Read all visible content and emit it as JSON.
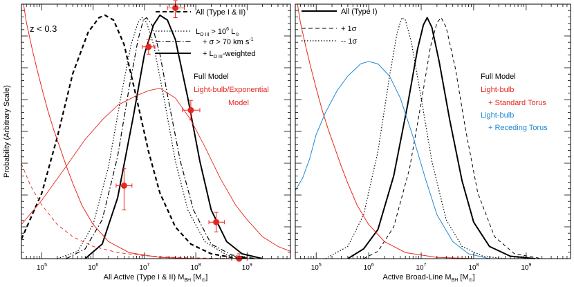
{
  "figure": {
    "ylabel": "Probability (Arbitrary Scale)"
  },
  "chart_data": [
    {
      "type": "line",
      "panel": "left",
      "xlabel": "All Active (Type I & II) M",
      "xlabel_sub": "BH",
      "xlabel_unit": "[M",
      "xlabel_unit_sub": "⊙",
      "xlabel_unit_end": "]",
      "x_scale": "log",
      "xlim": [
        40000,
        7000000000
      ],
      "ylim": [
        0,
        1.0
      ],
      "x_ticks": [
        {
          "v": 100000,
          "base": "10",
          "exp": "5"
        },
        {
          "v": 1000000,
          "base": "10",
          "exp": "6"
        },
        {
          "v": 10000000,
          "base": "10",
          "exp": "7"
        },
        {
          "v": 100000000,
          "base": "10",
          "exp": "8"
        },
        {
          "v": 1000000000,
          "base": "10",
          "exp": "9"
        }
      ],
      "annotation": "z < 0.3",
      "legend": [
        {
          "label": "All (Type I & II)",
          "style": "dashed"
        },
        {
          "label": "L_O III > 10^6 L_⊙",
          "style": "dotted"
        },
        {
          "label": "+ σ > 70 km s^-1",
          "style": "dashdot"
        },
        {
          "label": "+ L_O III-weighted",
          "style": "solid"
        }
      ],
      "text_labels": [
        "Full Model",
        "Light-bulb/Exponential",
        "Model"
      ],
      "series": [
        {
          "style": "dashed",
          "color": "#000000",
          "width": 2.2,
          "points": [
            [
              40000,
              0.08
            ],
            [
              100000,
              0.27
            ],
            [
              200000,
              0.5
            ],
            [
              400000,
              0.76
            ],
            [
              800000,
              0.93
            ],
            [
              1300000,
              0.99
            ],
            [
              1700000,
              1.0
            ],
            [
              2500000,
              0.98
            ],
            [
              4000000,
              0.88
            ],
            [
              7000000,
              0.66
            ],
            [
              12000000,
              0.44
            ],
            [
              20000000,
              0.27
            ],
            [
              40000000,
              0.13
            ],
            [
              80000000,
              0.06
            ],
            [
              200000000,
              0.02
            ],
            [
              500000000,
              0.005
            ],
            [
              1500000000,
              0
            ]
          ]
        },
        {
          "style": "dotted",
          "color": "#000000",
          "width": 1.2,
          "points": [
            [
              200000,
              0
            ],
            [
              500000,
              0.03
            ],
            [
              1000000,
              0.14
            ],
            [
              2000000,
              0.38
            ],
            [
              3500000,
              0.67
            ],
            [
              5500000,
              0.88
            ],
            [
              7500000,
              0.97
            ],
            [
              9000000,
              0.99
            ],
            [
              11000000,
              0.97
            ],
            [
              15000000,
              0.88
            ],
            [
              25000000,
              0.64
            ],
            [
              40000000,
              0.4
            ],
            [
              70000000,
              0.2
            ],
            [
              150000000,
              0.07
            ],
            [
              400000000,
              0.015
            ],
            [
              1000000000,
              0
            ]
          ]
        },
        {
          "style": "dashdot",
          "color": "#000000",
          "width": 1.2,
          "points": [
            [
              300000,
              0
            ],
            [
              700000,
              0.04
            ],
            [
              1500000,
              0.16
            ],
            [
              3000000,
              0.42
            ],
            [
              5000000,
              0.7
            ],
            [
              7500000,
              0.9
            ],
            [
              9500000,
              0.98
            ],
            [
              11000000,
              0.99
            ],
            [
              14000000,
              0.96
            ],
            [
              20000000,
              0.84
            ],
            [
              30000000,
              0.64
            ],
            [
              50000000,
              0.4
            ],
            [
              90000000,
              0.2
            ],
            [
              200000000,
              0.06
            ],
            [
              500000000,
              0.015
            ],
            [
              1500000000,
              0
            ]
          ]
        },
        {
          "style": "solid",
          "color": "#000000",
          "width": 2.0,
          "points": [
            [
              700000,
              0
            ],
            [
              1500000,
              0.06
            ],
            [
              3000000,
              0.25
            ],
            [
              6000000,
              0.58
            ],
            [
              10000000,
              0.84
            ],
            [
              15000000,
              0.96
            ],
            [
              20000000,
              1.0
            ],
            [
              28000000,
              0.98
            ],
            [
              40000000,
              0.9
            ],
            [
              70000000,
              0.66
            ],
            [
              120000000,
              0.4
            ],
            [
              200000000,
              0.2
            ],
            [
              400000000,
              0.07
            ],
            [
              800000000,
              0.02
            ],
            [
              2000000000,
              0
            ]
          ]
        },
        {
          "style": "solid",
          "color": "#e8261e",
          "width": 0.9,
          "points": [
            [
              40000,
              0.14
            ],
            [
              100000,
              0.24
            ],
            [
              300000,
              0.38
            ],
            [
              700000,
              0.49
            ],
            [
              1500000,
              0.57
            ],
            [
              3000000,
              0.63
            ],
            [
              7000000,
              0.67
            ],
            [
              12000000,
              0.69
            ],
            [
              20000000,
              0.7
            ],
            [
              40000000,
              0.66
            ],
            [
              80000000,
              0.57
            ],
            [
              150000000,
              0.46
            ],
            [
              300000000,
              0.33
            ],
            [
              600000000,
              0.22
            ],
            [
              1000000000,
              0.16
            ],
            [
              2000000000,
              0.09
            ],
            [
              4000000000,
              0.05
            ],
            [
              7000000000,
              0.03
            ]
          ]
        },
        {
          "style": "dashed",
          "color": "#e8261e",
          "width": 0.9,
          "points": [
            [
              40000,
              0.39
            ],
            [
              60000,
              0.3
            ],
            [
              100000,
              0.22
            ],
            [
              200000,
              0.14
            ],
            [
              400000,
              0.09
            ],
            [
              1000000,
              0.05
            ],
            [
              3000000,
              0.025
            ],
            [
              10000000,
              0.012
            ],
            [
              50000000,
              0.004
            ],
            [
              300000000,
              0.001
            ],
            [
              1000000000,
              0
            ]
          ]
        },
        {
          "style": "solid",
          "color": "#e8261e",
          "width": 1.0,
          "points": [
            [
              40000,
              1.1
            ],
            [
              50000,
              0.97
            ],
            [
              65000,
              0.86
            ],
            [
              80000,
              0.78
            ],
            [
              100000,
              0.7
            ],
            [
              130000,
              0.61
            ],
            [
              170000,
              0.53
            ],
            [
              230000,
              0.45
            ],
            [
              300000,
              0.38
            ],
            [
              400000,
              0.31
            ],
            [
              600000,
              0.22
            ],
            [
              1000000,
              0.14
            ],
            [
              2000000,
              0.07
            ],
            [
              5000000,
              0.025
            ],
            [
              20000000,
              0.005
            ],
            [
              100000000,
              0
            ]
          ]
        }
      ],
      "error_points": [
        {
          "x": 4000000,
          "y": 0.3,
          "xerr": [
            2800000,
            5700000
          ],
          "yerr": [
            0.2,
            0.37
          ]
        },
        {
          "x": 12000000,
          "y": 0.87,
          "xerr": [
            9000000,
            16000000
          ],
          "yerr": [
            0.84,
            0.9
          ]
        },
        {
          "x": 40000000,
          "y": 1.03,
          "xerr": [
            28000000,
            60000000
          ],
          "yerr": [
            0.99,
            1.06
          ]
        },
        {
          "x": 80000000,
          "y": 0.61,
          "xerr": [
            55000000,
            120000000
          ],
          "yerr": [
            0.57,
            0.65
          ]
        },
        {
          "x": 250000000,
          "y": 0.15,
          "xerr": [
            180000000,
            360000000
          ],
          "yerr": [
            0.11,
            0.19
          ]
        },
        {
          "x": 700000000,
          "y": 0.0,
          "xerr": [
            500000000,
            1000000000
          ],
          "yerr": [
            0,
            0.02
          ]
        }
      ]
    },
    {
      "type": "line",
      "panel": "right",
      "xlabel": "Active Broad-Line M",
      "xlabel_sub": "BH",
      "xlabel_unit": "[M",
      "xlabel_unit_sub": "⊙",
      "xlabel_unit_end": "]",
      "x_scale": "log",
      "xlim": [
        40000,
        7000000000
      ],
      "ylim": [
        0,
        1.0
      ],
      "x_ticks": [
        {
          "v": 100000,
          "base": "10",
          "exp": "5"
        },
        {
          "v": 1000000,
          "base": "10",
          "exp": "6"
        },
        {
          "v": 10000000,
          "base": "10",
          "exp": "7"
        },
        {
          "v": 100000000,
          "base": "10",
          "exp": "8"
        },
        {
          "v": 1000000000,
          "base": "10",
          "exp": "9"
        }
      ],
      "legend": [
        {
          "label": "All (Type I)",
          "style": "solid"
        },
        {
          "label": "+ 1σ",
          "style": "dashed"
        },
        {
          "label": "-- 1σ",
          "style": "dotted"
        }
      ],
      "text_labels": [
        {
          "text": "Full Model",
          "color": "#000000"
        },
        {
          "text": "Light-bulb",
          "color": "#e8261e"
        },
        {
          "text": "+ Standard Torus",
          "color": "#e8261e"
        },
        {
          "text": "Light-bulb",
          "color": "#1f8ad6"
        },
        {
          "text": "+ Receding Torus",
          "color": "#1f8ad6"
        }
      ],
      "series": [
        {
          "style": "solid",
          "color": "#000000",
          "width": 2.0,
          "points": [
            [
              400000,
              0
            ],
            [
              800000,
              0.04
            ],
            [
              1500000,
              0.12
            ],
            [
              3000000,
              0.34
            ],
            [
              5500000,
              0.63
            ],
            [
              8500000,
              0.86
            ],
            [
              11000000,
              0.96
            ],
            [
              13000000,
              0.99
            ],
            [
              16000000,
              0.95
            ],
            [
              22000000,
              0.81
            ],
            [
              35000000,
              0.57
            ],
            [
              60000000,
              0.32
            ],
            [
              100000000,
              0.15
            ],
            [
              200000000,
              0.05
            ],
            [
              500000000,
              0.01
            ],
            [
              1500000000,
              0
            ]
          ]
        },
        {
          "style": "dashed",
          "color": "#000000",
          "width": 1.0,
          "points": [
            [
              800000,
              0
            ],
            [
              1500000,
              0.03
            ],
            [
              3000000,
              0.13
            ],
            [
              6000000,
              0.37
            ],
            [
              10000000,
              0.64
            ],
            [
              15000000,
              0.87
            ],
            [
              20000000,
              0.97
            ],
            [
              24000000,
              0.99
            ],
            [
              30000000,
              0.95
            ],
            [
              45000000,
              0.78
            ],
            [
              70000000,
              0.53
            ],
            [
              120000000,
              0.27
            ],
            [
              250000000,
              0.09
            ],
            [
              600000000,
              0.02
            ],
            [
              2000000000,
              0
            ]
          ]
        },
        {
          "style": "dotted",
          "color": "#000000",
          "width": 1.2,
          "points": [
            [
              150000,
              0
            ],
            [
              400000,
              0.05
            ],
            [
              800000,
              0.18
            ],
            [
              1500000,
              0.44
            ],
            [
              2500000,
              0.75
            ],
            [
              3500000,
              0.93
            ],
            [
              4300000,
              0.99
            ],
            [
              5000000,
              0.98
            ],
            [
              6500000,
              0.89
            ],
            [
              10000000,
              0.66
            ],
            [
              16000000,
              0.4
            ],
            [
              30000000,
              0.16
            ],
            [
              60000000,
              0.05
            ],
            [
              150000000,
              0.01
            ],
            [
              400000000,
              0
            ]
          ]
        },
        {
          "style": "solid",
          "color": "#1f8ad6",
          "width": 1.0,
          "points": [
            [
              40000,
              0.28
            ],
            [
              55000,
              0.33
            ],
            [
              75000,
              0.41
            ],
            [
              100000,
              0.51
            ],
            [
              150000,
              0.6
            ],
            [
              250000,
              0.69
            ],
            [
              400000,
              0.75
            ],
            [
              700000,
              0.8
            ],
            [
              1000000,
              0.81
            ],
            [
              1500000,
              0.8
            ],
            [
              2500000,
              0.75
            ],
            [
              4000000,
              0.66
            ],
            [
              7000000,
              0.5
            ],
            [
              12000000,
              0.33
            ],
            [
              20000000,
              0.18
            ],
            [
              40000000,
              0.07
            ],
            [
              80000000,
              0.02
            ],
            [
              200000000,
              0
            ]
          ]
        },
        {
          "style": "solid",
          "color": "#e8261e",
          "width": 1.0,
          "points": [
            [
              40000,
              1.1
            ],
            [
              50000,
              0.97
            ],
            [
              65000,
              0.86
            ],
            [
              80000,
              0.78
            ],
            [
              100000,
              0.7
            ],
            [
              130000,
              0.61
            ],
            [
              170000,
              0.53
            ],
            [
              230000,
              0.45
            ],
            [
              300000,
              0.38
            ],
            [
              400000,
              0.31
            ],
            [
              600000,
              0.22
            ],
            [
              1000000,
              0.14
            ],
            [
              2000000,
              0.07
            ],
            [
              5000000,
              0.025
            ],
            [
              20000000,
              0.005
            ],
            [
              100000000,
              0
            ]
          ]
        }
      ]
    }
  ]
}
